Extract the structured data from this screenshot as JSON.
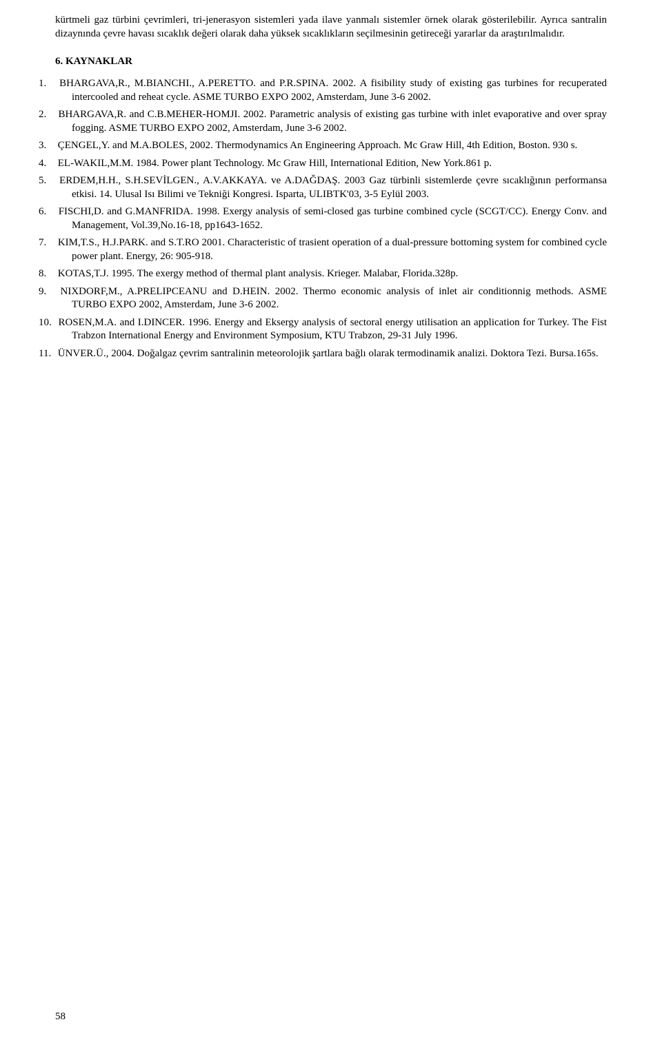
{
  "intro_paragraphs": [
    "kürtmeli gaz türbini çevrimleri, tri-jenerasyon sistemleri yada ilave yanmalı sistemler örnek olarak gösterilebilir. Ayrıca santralin dizaynında çevre havası sıcaklık değeri olarak daha yüksek sıcaklıkların seçilmesinin getireceği yararlar da araştırılmalıdır."
  ],
  "section_heading": "6. KAYNAKLAR",
  "references": [
    "BHARGAVA,R., M.BIANCHI., A.PERETTO. and P.R.SPINA. 2002. A fisibility study of existing gas turbines for recuperated intercooled and reheat cycle. ASME TURBO EXPO 2002, Amsterdam, June 3-6 2002.",
    "BHARGAVA,R. and C.B.MEHER-HOMJI. 2002. Parametric analysis of existing gas turbine with inlet evaporative and over spray fogging. ASME TURBO EXPO 2002, Amsterdam, June 3-6 2002.",
    "ÇENGEL,Y. and M.A.BOLES, 2002. Thermodynamics An Engineering Approach. Mc Graw Hill, 4th Edition, Boston. 930 s.",
    "EL-WAKIL,M.M. 1984. Power plant Technology. Mc Graw Hill, International Edition, New York.861 p.",
    "ERDEM,H.H., S.H.SEVİLGEN., A.V.AKKAYA. ve A.DAĞDAŞ. 2003 Gaz türbinli sistemlerde çevre sıcaklığının performansa etkisi. 14. Ulusal Isı Bilimi ve Tekniği Kongresi. Isparta, ULIBTK'03, 3-5 Eylül 2003.",
    "FISCHI,D. and G.MANFRIDA. 1998. Exergy analysis of semi-closed gas turbine combined cycle (SCGT/CC). Energy Conv. and Management, Vol.39,No.16-18, pp1643-1652.",
    "KIM,T.S., H.J.PARK. and S.T.RO 2001. Characteristic of trasient operation of a dual-pressure bottoming system for combined cycle power plant. Energy, 26: 905-918.",
    "KOTAS,T.J. 1995. The exergy method of thermal plant analysis. Krieger. Malabar, Florida.328p.",
    "NIXDORF,M., A.PRELIPCEANU and D.HEIN. 2002. Thermo economic analysis of inlet air conditionnig methods. ASME TURBO EXPO 2002, Amsterdam, June 3-6 2002.",
    "ROSEN,M.A. and I.DINCER. 1996. Energy and Eksergy analysis of sectoral energy utilisation an application for Turkey. The Fist Trabzon International Energy and Environment Symposium, KTU Trabzon, 29-31 July 1996.",
    "ÜNVER.Ü., 2004. Doğalgaz çevrim santralinin meteorolojik şartlara bağlı olarak termodinamik analizi. Doktora Tezi. Bursa.165s."
  ],
  "page_number": "58"
}
